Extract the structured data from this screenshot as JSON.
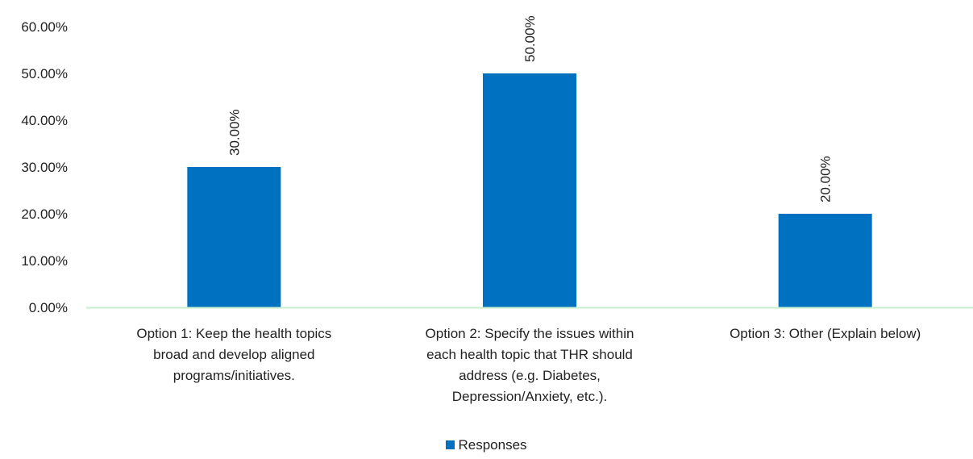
{
  "chart_data": {
    "type": "bar",
    "categories": [
      "Option 1: Keep the health topics broad and develop aligned programs/initiatives.",
      "Option 2: Specify the issues within each health topic that THR should address (e.g. Diabetes, Depression/Anxiety, etc.).",
      "Option 3: Other (Explain below)"
    ],
    "category_lines": [
      [
        "Option 1: Keep the health topics",
        "broad and develop aligned",
        "programs/initiatives."
      ],
      [
        "Option 2: Specify the issues within",
        "each health topic that THR should",
        "address (e.g. Diabetes,",
        "Depression/Anxiety, etc.)."
      ],
      [
        "Option 3: Other (Explain below)"
      ]
    ],
    "series": [
      {
        "name": "Responses",
        "values": [
          30,
          50,
          20
        ],
        "color": "#0070C0"
      }
    ],
    "data_labels": [
      "30.00%",
      "50.00%",
      "20.00%"
    ],
    "yticks": [
      0,
      10,
      20,
      30,
      40,
      50,
      60
    ],
    "ytick_labels": [
      "0.00%",
      "10.00%",
      "20.00%",
      "30.00%",
      "40.00%",
      "50.00%",
      "60.00%"
    ],
    "ylim": [
      0,
      60
    ],
    "grid": false,
    "axis_color": "#c6efce",
    "legend": {
      "position": "bottom",
      "label": "Responses"
    }
  }
}
